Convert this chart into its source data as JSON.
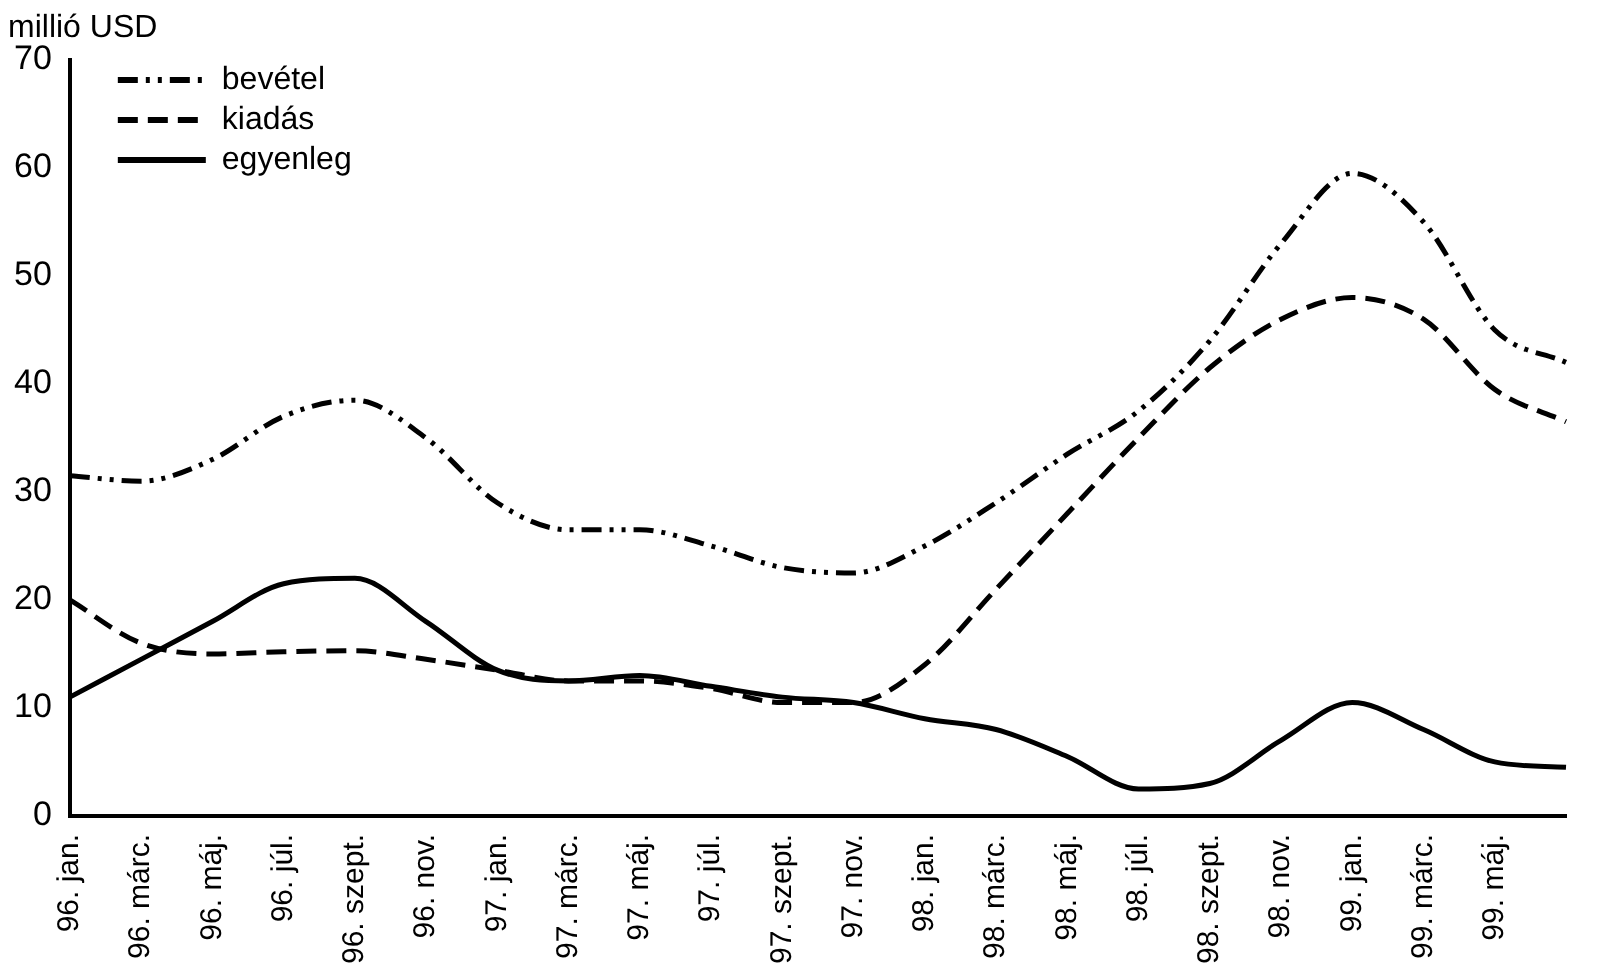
{
  "chart_data": {
    "type": "line",
    "ylabel": "millió USD",
    "categories": [
      "96. jan.",
      "96. márc.",
      "96. máj.",
      "96. júl.",
      "96. szept.",
      "96. nov.",
      "97. jan.",
      "97. márc.",
      "97. máj.",
      "97. júl.",
      "97. szept.",
      "97. nov.",
      "98. jan.",
      "98. márc.",
      "98. máj.",
      "98. júl.",
      "98. szept.",
      "98. nov.",
      "99. jan.",
      "99. márc.",
      "99. máj.",
      null
    ],
    "series": [
      {
        "name": "bevétel",
        "color": "#000000",
        "line_style": "dashdot",
        "values": [
          31.5,
          31,
          33,
          37,
          38.5,
          35,
          29,
          26.5,
          26.5,
          25,
          23,
          22.5,
          25,
          29,
          33.5,
          37.5,
          44,
          53,
          59.5,
          55,
          45,
          42
        ]
      },
      {
        "name": "kiadás",
        "color": "#000000",
        "line_style": "dashed",
        "values": [
          20,
          16,
          15,
          15.2,
          15.3,
          14.5,
          13.5,
          12.5,
          12.5,
          11.8,
          10.5,
          10.5,
          14,
          21,
          28,
          35,
          41.5,
          46,
          48,
          46,
          39.5,
          36.5
        ]
      },
      {
        "name": "egyenleg",
        "color": "#000000",
        "line_style": "solid",
        "values": [
          11,
          14.5,
          18,
          21.5,
          22,
          18,
          13.5,
          12.5,
          13,
          12,
          11,
          10.5,
          9,
          8,
          5.5,
          2.5,
          3,
          7,
          10.5,
          8,
          5,
          4.5
        ]
      }
    ],
    "ylim": [
      0,
      70
    ],
    "yticks": [
      0,
      10,
      20,
      30,
      40,
      50,
      60,
      70
    ],
    "grid": false,
    "legend": "top left",
    "marker": "none"
  }
}
